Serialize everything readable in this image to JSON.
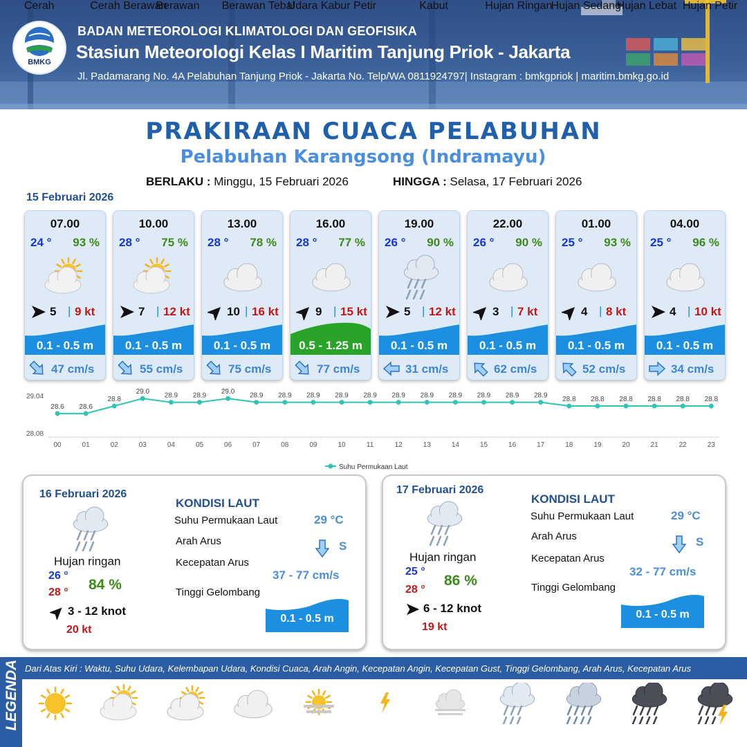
{
  "header": {
    "logo_text": "BMKG",
    "agency": "BADAN METEOROLOGI KLIMATOLOGI DAN GEOFISIKA",
    "station": "Stasiun Meteorologi Kelas I Maritim Tanjung Priok - Jakarta",
    "address": "Jl. Padamarang No. 4A Pelabuhan Tanjung Priok - Jakarta No. Telp/WA 0811924797| Instagram : bmkgpriok | maritim.bmkg.go.id"
  },
  "title": "PRAKIRAAN CUACA PELABUHAN",
  "subtitle": "Pelabuhan Karangsong (Indramayu)",
  "validity": {
    "from_label": "BERLAKU :",
    "from_value": "Minggu, 15 Februari 2026",
    "to_label": "HINGGA :",
    "to_value": "Selasa, 17 Februari 2026"
  },
  "day1_date": "15 Februari 2026",
  "hourly": [
    {
      "time": "07.00",
      "temp": "24 °",
      "hum": "93 %",
      "icon": "cerah-berawan-icon",
      "wind_dir_deg": 90,
      "wind": "5",
      "gust": "9 kt",
      "wave": "0.1 - 0.5 m",
      "wave_level": "low",
      "cur_dir": "se",
      "cur": "47 cm/s"
    },
    {
      "time": "10.00",
      "temp": "28 °",
      "hum": "75 %",
      "icon": "cerah-berawan-icon",
      "wind_dir_deg": 90,
      "wind": "7",
      "gust": "12 kt",
      "wave": "0.1 - 0.5 m",
      "wave_level": "low",
      "cur_dir": "se",
      "cur": "55 cm/s"
    },
    {
      "time": "13.00",
      "temp": "28 °",
      "hum": "78 %",
      "icon": "berawan-tebal-icon",
      "wind_dir_deg": 45,
      "wind": "10",
      "gust": "16 kt",
      "wave": "0.1 - 0.5 m",
      "wave_level": "low",
      "cur_dir": "se",
      "cur": "75 cm/s"
    },
    {
      "time": "16.00",
      "temp": "28 °",
      "hum": "77 %",
      "icon": "berawan-tebal-icon",
      "wind_dir_deg": 45,
      "wind": "9",
      "gust": "15 kt",
      "wave": "0.5 - 1.25 m",
      "wave_level": "moderate",
      "cur_dir": "se",
      "cur": "77 cm/s"
    },
    {
      "time": "19.00",
      "temp": "26 °",
      "hum": "90 %",
      "icon": "hujan-ringan-icon",
      "wind_dir_deg": 90,
      "wind": "5",
      "gust": "12 kt",
      "wave": "0.1 - 0.5 m",
      "wave_level": "low",
      "cur_dir": "w",
      "cur": "31 cm/s"
    },
    {
      "time": "22.00",
      "temp": "26 °",
      "hum": "90 %",
      "icon": "berawan-tebal-icon",
      "wind_dir_deg": 45,
      "wind": "3",
      "gust": "7 kt",
      "wave": "0.1 - 0.5 m",
      "wave_level": "low",
      "cur_dir": "nw",
      "cur": "62 cm/s"
    },
    {
      "time": "01.00",
      "temp": "25 °",
      "hum": "93 %",
      "icon": "berawan-tebal-icon",
      "wind_dir_deg": 45,
      "wind": "4",
      "gust": "8 kt",
      "wave": "0.1 - 0.5 m",
      "wave_level": "low",
      "cur_dir": "nw",
      "cur": "52 cm/s"
    },
    {
      "time": "04.00",
      "temp": "25 °",
      "hum": "96 %",
      "icon": "berawan-tebal-icon",
      "wind_dir_deg": 90,
      "wind": "4",
      "gust": "10 kt",
      "wave": "0.1 - 0.5 m",
      "wave_level": "low",
      "cur_dir": "e",
      "cur": "34 cm/s"
    }
  ],
  "chart_data": {
    "type": "line",
    "x": [
      "00",
      "01",
      "02",
      "03",
      "04",
      "05",
      "06",
      "07",
      "08",
      "09",
      "10",
      "11",
      "12",
      "13",
      "14",
      "15",
      "16",
      "17",
      "18",
      "19",
      "20",
      "21",
      "22",
      "23"
    ],
    "series": [
      {
        "name": "Suhu Permukaan Laut",
        "values": [
          28.6,
          28.6,
          28.8,
          29.0,
          28.9,
          28.9,
          29.0,
          28.9,
          28.9,
          28.9,
          28.9,
          28.9,
          28.9,
          28.9,
          28.9,
          28.9,
          28.9,
          28.9,
          28.8,
          28.8,
          28.8,
          28.8,
          28.8,
          28.8
        ],
        "labels": [
          "28.6",
          "28.6",
          "28.8",
          "29.0",
          "28.9",
          "28.9",
          "29.0",
          "28.9",
          "28.9",
          "28.9",
          "28.9",
          "28.9",
          "28.9",
          "28.9",
          "28.9",
          "28.9",
          "28.9",
          "28.9",
          "28.8",
          "28.8",
          "28.8",
          "28.8",
          "28.8",
          "28.8"
        ],
        "color": "#2ec4b6"
      }
    ],
    "ylim": [
      28.08,
      29.04
    ],
    "yticks": [
      "29.04",
      "28.08"
    ],
    "legend_position": "bottom-center",
    "grid": false
  },
  "daily": [
    {
      "date": "16 Februari 2026",
      "icon": "hujan-ringan-icon",
      "condition": "Hujan ringan",
      "tmin": "26 °",
      "tmax": "28 °",
      "hum": "84 %",
      "wind_dir_deg": 45,
      "wind": "3  - 12 knot",
      "gust": "20 kt",
      "sea_title": "KONDISI LAUT",
      "sst_label": "Suhu Permukaan Laut",
      "sst": "29 °C",
      "cur_dir_label": "Arah Arus",
      "cur_dir": "S",
      "cur_spd_label": "Kecepatan Arus",
      "cur_spd": "37 - 77 cm/s",
      "wave_label": "Tinggi Gelombang",
      "wave": "0.1 - 0.5 m"
    },
    {
      "date": "17 Februari 2026",
      "icon": "hujan-ringan-icon",
      "condition": "Hujan ringan",
      "tmin": "25 °",
      "tmax": "28 °",
      "hum": "86 %",
      "wind_dir_deg": 90,
      "wind": "6  - 12 knot",
      "gust": "19 kt",
      "sea_title": "KONDISI LAUT",
      "sst_label": "Suhu Permukaan Laut",
      "sst": "29 °C",
      "cur_dir_label": "Arah Arus",
      "cur_dir": "S",
      "cur_spd_label": "Kecepatan Arus",
      "cur_spd": "32 - 77 cm/s",
      "wave_label": "Tinggi Gelombang",
      "wave": "0.1 - 0.5 m"
    }
  ],
  "legend": {
    "tab": "LEGENDA",
    "description": "Dari Atas Kiri : Waktu, Suhu Udara, Kelembapan Udara, Kondisi Cuaca, Arah Angin, Kecepatan Angin, Kecepatan Gust, Tinggi Gelombang, Arah Arus, Kecepatan Arus",
    "items": [
      {
        "label": "Cerah",
        "icon": "cerah-icon"
      },
      {
        "label": "Cerah Berawan",
        "icon": "cerah-berawan-icon"
      },
      {
        "label": "Berawan",
        "icon": "berawan-icon"
      },
      {
        "label": "Berawan Tebal",
        "icon": "berawan-tebal-icon"
      },
      {
        "label": "Udara Kabur",
        "icon": "udara-kabur-icon"
      },
      {
        "label": "Petir",
        "icon": "petir-icon"
      },
      {
        "label": "Kabut",
        "icon": "kabut-icon"
      },
      {
        "label": "Hujan Ringan",
        "icon": "hujan-ringan-icon"
      },
      {
        "label": "Hujan Sedang",
        "icon": "hujan-sedang-icon"
      },
      {
        "label": "Hujan Lebat",
        "icon": "hujan-lebat-icon"
      },
      {
        "label": "Hujan Petir",
        "icon": "hujan-petir-icon"
      }
    ]
  },
  "colors": {
    "wave_low": "#1d8fe0",
    "wave_moderate": "#2aa329",
    "sst_line": "#2ec4b6",
    "temp": "#1535d6",
    "humidity": "#3b8a1b",
    "gust": "#c41616",
    "title": "#1f5fab"
  }
}
